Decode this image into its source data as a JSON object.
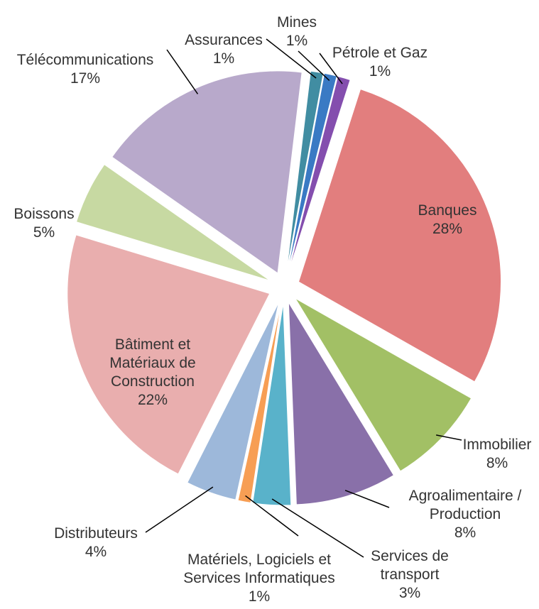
{
  "chart_data": {
    "type": "pie",
    "categories": [
      "Assurances",
      "Mines",
      "Pétrole et Gaz",
      "Banques",
      "Immobilier",
      "Agroalimentaire / Production",
      "Services de transport",
      "Matériels, Logiciels et Services Informatiques",
      "Distributeurs",
      "Bâtiment et Matériaux de Construction",
      "Boissons",
      "Télécommunications"
    ],
    "values": [
      1,
      1,
      1,
      28,
      8,
      8,
      3,
      1,
      4,
      22,
      5,
      17
    ],
    "value_labels": [
      "1%",
      "1%",
      "1%",
      "28%",
      "8%",
      "8%",
      "3%",
      "1%",
      "4%",
      "22%",
      "5%",
      "17%"
    ],
    "colors": [
      "#31849b",
      "#2a6fc0",
      "#7a3fa8",
      "#e07474",
      "#9bbb59",
      "#8064a2",
      "#4bacc6",
      "#f79646",
      "#95b3d7",
      "#e8a8a8",
      "#c3d69b",
      "#b3a2c7"
    ]
  }
}
